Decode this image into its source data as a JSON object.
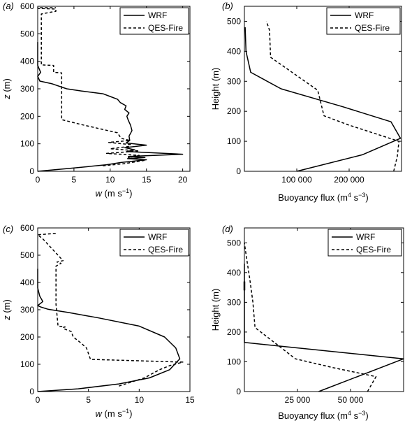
{
  "chart_data": [
    {
      "type": "line",
      "panel": "(a)",
      "xlabel": "w (m s−1)",
      "ylabel": "z (m)",
      "xlim": [
        0,
        21
      ],
      "ylim": [
        0,
        600
      ],
      "xticks": [
        0,
        5,
        10,
        15,
        20
      ],
      "xtick_labels": [
        "0",
        "5",
        "10",
        "15",
        "20"
      ],
      "yticks": [
        0,
        100,
        200,
        300,
        400,
        500,
        600
      ],
      "ytick_labels": [
        "0",
        "100",
        "200",
        "300",
        "400",
        "500",
        "600"
      ],
      "legend": {
        "position": "top-right",
        "entries": [
          "WRF",
          "QES-Fire"
        ]
      },
      "series": [
        {
          "name": "WRF",
          "style": "solid",
          "x": [
            0,
            5,
            9.5,
            11.5,
            15,
            12.4,
            14.8,
            12.5,
            20,
            12.3,
            13.4,
            12,
            15,
            12.2,
            12.7,
            12.6,
            13.0,
            12.8,
            12.5,
            12.3,
            12.6,
            12.0,
            12.2,
            11.4,
            11.0,
            10.0,
            9.0,
            6.0,
            4.0,
            2.0,
            0.3,
            0,
            0.4,
            0,
            0
          ],
          "y": [
            0,
            12,
            24,
            32,
            42,
            46,
            50,
            54,
            62,
            72,
            78,
            86,
            95,
            103,
            112,
            128,
            148,
            168,
            185,
            200,
            212,
            225,
            238,
            250,
            262,
            272,
            282,
            292,
            300,
            318,
            328,
            345,
            360,
            385,
            470
          ]
        },
        {
          "name": "QES-Fire",
          "style": "dashed",
          "x": [
            9,
            12,
            14.8,
            12.5,
            14,
            9.5,
            14,
            10,
            12.5,
            12.8,
            9.8,
            12.7,
            11.5,
            11,
            6,
            3.3,
            3.3,
            2.2,
            2.2,
            0.5,
            0.5,
            2.5,
            2.5,
            0.1,
            0,
            2.5
          ],
          "y": [
            20,
            28,
            40,
            50,
            58,
            65,
            74,
            82,
            90,
            97,
            105,
            112,
            120,
            140,
            170,
            188,
            358,
            360,
            385,
            387,
            572,
            582,
            590,
            592,
            595,
            595
          ]
        }
      ]
    },
    {
      "type": "line",
      "panel": "(b)",
      "xlabel": "Buoyancy flux (m4 s−3)",
      "ylabel": "Height (m)",
      "xlim": [
        0,
        300000
      ],
      "ylim": [
        0,
        550
      ],
      "xticks": [
        100000,
        200000
      ],
      "xtick_labels": [
        "100 000",
        "200 000"
      ],
      "yticks": [
        0,
        100,
        200,
        300,
        400,
        500
      ],
      "ytick_labels": [
        "0",
        "100",
        "200",
        "300",
        "400",
        "500"
      ],
      "legend": {
        "position": "top-right",
        "entries": [
          "WRF",
          "QES-Fire"
        ]
      },
      "series": [
        {
          "name": "WRF",
          "style": "solid",
          "x": [
            100000,
            225000,
            298000,
            280000,
            188000,
            70000,
            12000,
            3000,
            1500
          ],
          "y": [
            0,
            55,
            110,
            165,
            215,
            275,
            330,
            400,
            480
          ]
        },
        {
          "name": "QES-Fire",
          "style": "dashed",
          "x": [
            285000,
            292000,
            295000,
            198000,
            152000,
            140000,
            50000,
            48000,
            42000
          ],
          "y": [
            0,
            50,
            100,
            155,
            185,
            270,
            380,
            470,
            500
          ]
        }
      ]
    },
    {
      "type": "line",
      "panel": "(c)",
      "xlabel": "w (m s−1)",
      "ylabel": "z (m)",
      "xlim": [
        0,
        15
      ],
      "ylim": [
        0,
        600
      ],
      "xticks": [
        0,
        5,
        10,
        15
      ],
      "xtick_labels": [
        "0",
        "5",
        "10",
        "15"
      ],
      "yticks": [
        0,
        100,
        200,
        300,
        400,
        500,
        600
      ],
      "ytick_labels": [
        "0",
        "100",
        "200",
        "300",
        "400",
        "500",
        "600"
      ],
      "legend": {
        "position": "top-right",
        "entries": [
          "WRF",
          "QES-Fire"
        ]
      },
      "series": [
        {
          "name": "WRF",
          "style": "solid",
          "x": [
            0,
            4,
            8,
            11,
            13,
            14,
            13.6,
            12.5,
            10,
            6,
            3,
            1,
            0.3,
            0,
            0.5,
            0.2,
            0,
            0
          ],
          "y": [
            0,
            10,
            28,
            50,
            80,
            120,
            160,
            200,
            240,
            270,
            290,
            302,
            310,
            315,
            330,
            350,
            380,
            450
          ]
        },
        {
          "name": "QES-Fire",
          "style": "dashed",
          "x": [
            8,
            10.5,
            12,
            13,
            14.3,
            5.2,
            4.8,
            4.2,
            3.5,
            3.3,
            2.6,
            2.5,
            2.7,
            2.0,
            1.8,
            1.8,
            2.3,
            1.9,
            2.5,
            0.5,
            0,
            1.8
          ],
          "y": [
            20,
            50,
            80,
            95,
            108,
            118,
            160,
            180,
            200,
            220,
            230,
            235,
            237,
            240,
            320,
            460,
            470,
            475,
            480,
            560,
            575,
            580
          ]
        }
      ]
    },
    {
      "type": "line",
      "panel": "(d)",
      "xlabel": "Buoyancy flux (m4 s−3)",
      "ylabel": "Height (m)",
      "xlim": [
        0,
        75000
      ],
      "ylim": [
        0,
        550
      ],
      "xticks": [
        25000,
        50000
      ],
      "xtick_labels": [
        "25 000",
        "50 000"
      ],
      "yticks": [
        0,
        100,
        200,
        300,
        400,
        500
      ],
      "ytick_labels": [
        "0",
        "100",
        "200",
        "300",
        "400",
        "500"
      ],
      "legend": {
        "position": "top-right",
        "entries": [
          "WRF",
          "QES-Fire"
        ]
      },
      "series": [
        {
          "name": "WRF",
          "style": "solid",
          "x": [
            35000,
            75000,
            0,
            0
          ],
          "y": [
            0,
            110,
            165,
            430
          ],
          "extra_segment": {
            "x": [
              0,
              0
            ],
            "y": [
              340,
              370
            ]
          }
        },
        {
          "name": "QES-Fire",
          "style": "dashed",
          "x": [
            58000,
            62000,
            42000,
            24000,
            15000,
            5000,
            4000,
            2500,
            1000,
            0
          ],
          "y": [
            0,
            50,
            80,
            110,
            160,
            215,
            300,
            380,
            450,
            500
          ]
        }
      ]
    }
  ],
  "panels": [
    {
      "label": "(a)",
      "xlabel_parts": [
        "w",
        " (m s",
        "−1",
        ")"
      ],
      "ylabel_parts": [
        "z",
        " (m)"
      ],
      "legend": [
        "WRF",
        "QES-Fire"
      ]
    },
    {
      "label": "(b)",
      "xlabel_parts": [
        "Buoyancy flux (m",
        "4",
        " s",
        "−3",
        ")"
      ],
      "ylabel_parts": [
        "Height (m)"
      ],
      "legend": [
        "WRF",
        "QES-Fire"
      ]
    },
    {
      "label": "(c)",
      "xlabel_parts": [
        "w",
        " (m s",
        "−1",
        ")"
      ],
      "ylabel_parts": [
        "z",
        " (m)"
      ],
      "legend": [
        "WRF",
        "QES-Fire"
      ]
    },
    {
      "label": "(d)",
      "xlabel_parts": [
        "Buoyancy flux (m",
        "4",
        " s",
        "−3",
        ")"
      ],
      "ylabel_parts": [
        "Height (m)"
      ],
      "legend": [
        "WRF",
        "QES-Fire"
      ]
    }
  ]
}
